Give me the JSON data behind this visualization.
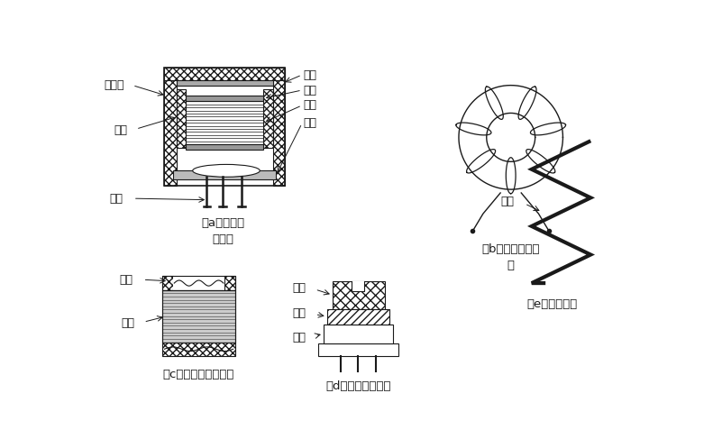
{
  "bg_color": "#ffffff",
  "line_color": "#1a1a1a",
  "caption_a": "（a）小型振\n荡线圈",
  "caption_b": "（b）带磁环的线\n圈",
  "caption_c": "（c）不带磁芯的线圈",
  "caption_d": "（d）带磁芯的线圈",
  "caption_e": "（e）空心线圈",
  "label_a_left": [
    "屏蔽罩",
    "支架",
    "焊脚"
  ],
  "label_a_right": [
    "磁帽",
    "磁芯",
    "绕组",
    "支座"
  ],
  "label_c": [
    "骨架",
    "绕组"
  ],
  "label_d": [
    "磁芯",
    "绕组",
    "骨架"
  ],
  "label_e": [
    "绕组"
  ]
}
